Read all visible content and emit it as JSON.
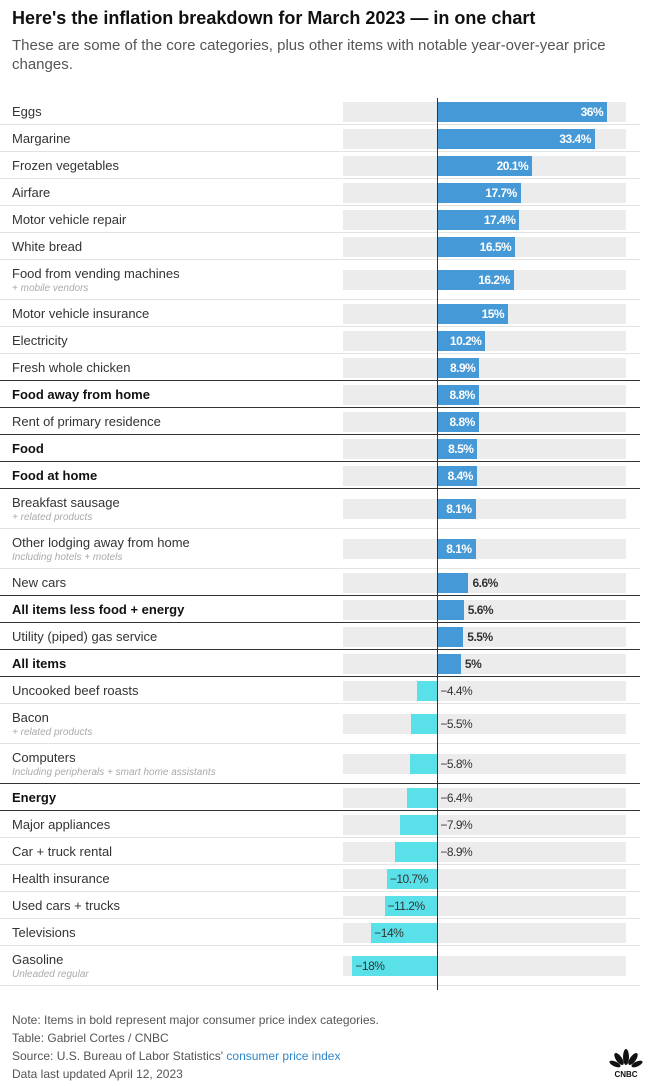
{
  "chart_data": {
    "type": "bar",
    "orientation": "horizontal",
    "title": "Here's the inflation breakdown for March 2023 — in one chart",
    "subtitle": "These are some of the core categories, plus other items with notable year-over-year price changes.",
    "xlim": [
      -20,
      40
    ],
    "colors": {
      "positive": "#4599d6",
      "negative": "#59e0e8"
    },
    "items": [
      {
        "label": "Eggs",
        "value": 36,
        "text": "36%"
      },
      {
        "label": "Margarine",
        "value": 33.4,
        "text": "33.4%"
      },
      {
        "label": "Frozen vegetables",
        "value": 20.1,
        "text": "20.1%"
      },
      {
        "label": "Airfare",
        "value": 17.7,
        "text": "17.7%"
      },
      {
        "label": "Motor vehicle repair",
        "value": 17.4,
        "text": "17.4%"
      },
      {
        "label": "White bread",
        "value": 16.5,
        "text": "16.5%"
      },
      {
        "label": "Food from vending machines",
        "sublabel": "+ mobile vendors",
        "value": 16.2,
        "text": "16.2%"
      },
      {
        "label": "Motor vehicle insurance",
        "value": 15,
        "text": "15%"
      },
      {
        "label": "Electricity",
        "value": 10.2,
        "text": "10.2%"
      },
      {
        "label": "Fresh whole chicken",
        "value": 8.9,
        "text": "8.9%"
      },
      {
        "label": "Food away from home",
        "value": 8.8,
        "text": "8.8%",
        "bold": true
      },
      {
        "label": "Rent of primary residence",
        "value": 8.8,
        "text": "8.8%"
      },
      {
        "label": "Food",
        "value": 8.5,
        "text": "8.5%",
        "bold": true
      },
      {
        "label": "Food at home",
        "value": 8.4,
        "text": "8.4%",
        "bold": true
      },
      {
        "label": "Breakfast sausage",
        "sublabel": "+ related products",
        "value": 8.1,
        "text": "8.1%"
      },
      {
        "label": "Other lodging away from home",
        "sublabel": "Including hotels + motels",
        "value": 8.1,
        "text": "8.1%"
      },
      {
        "label": "New cars",
        "value": 6.6,
        "text": "6.6%"
      },
      {
        "label": "All items less food + energy",
        "value": 5.6,
        "text": "5.6%",
        "bold": true
      },
      {
        "label": "Utility (piped) gas service",
        "value": 5.5,
        "text": "5.5%"
      },
      {
        "label": "All items",
        "value": 5,
        "text": "5%",
        "bold": true
      },
      {
        "label": "Uncooked beef roasts",
        "value": -4.4,
        "text": "−4.4%"
      },
      {
        "label": "Bacon",
        "sublabel": "+ related products",
        "value": -5.5,
        "text": "−5.5%"
      },
      {
        "label": "Computers",
        "sublabel": "Including peripherals + smart home assistants",
        "value": -5.8,
        "text": "−5.8%"
      },
      {
        "label": "Energy",
        "value": -6.4,
        "text": "−6.4%",
        "bold": true
      },
      {
        "label": "Major appliances",
        "value": -7.9,
        "text": "−7.9%"
      },
      {
        "label": "Car + truck rental",
        "value": -8.9,
        "text": "−8.9%"
      },
      {
        "label": "Health insurance",
        "value": -10.7,
        "text": "−10.7%"
      },
      {
        "label": "Used cars + trucks",
        "value": -11.2,
        "text": "−11.2%"
      },
      {
        "label": "Televisions",
        "value": -14,
        "text": "−14%"
      },
      {
        "label": "Gasoline",
        "sublabel": "Unleaded regular",
        "value": -18,
        "text": "−18%"
      }
    ]
  },
  "footer": {
    "note": "Note: Items in bold represent major consumer price index categories.",
    "credit": "Table: Gabriel Cortes / CNBC",
    "source_prefix": "Source: U.S. Bureau of Labor Statistics'",
    "source_link": "consumer price index",
    "updated": "Data last updated April 12, 2023",
    "logo": "CNBC"
  }
}
